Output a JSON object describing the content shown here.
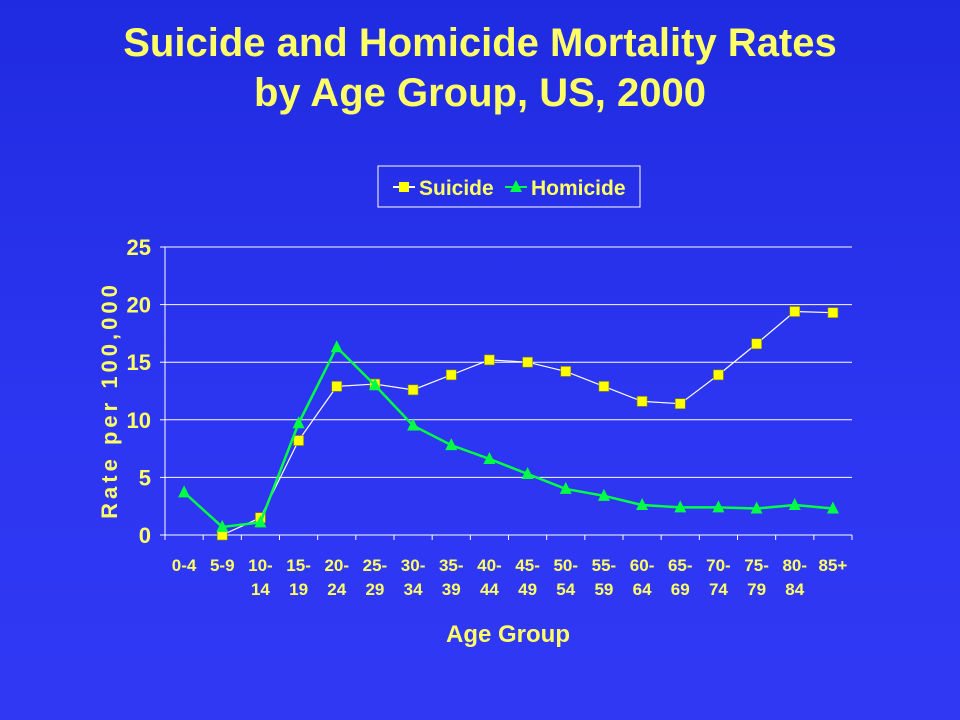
{
  "title": {
    "line1": "Suicide and Homicide Mortality Rates",
    "line2": "by Age Group, US, 2000"
  },
  "chart_data": {
    "type": "line",
    "title": "Suicide and Homicide Mortality Rates by Age Group, US, 2000",
    "xlabel": "Age Group",
    "ylabel": "Rate per 100,000",
    "ylim": [
      0,
      25
    ],
    "yticks": [
      0,
      5,
      10,
      15,
      20,
      25
    ],
    "grid": true,
    "legend_position": "top-center",
    "categories": [
      [
        "0-4"
      ],
      [
        "5-9"
      ],
      [
        "10-",
        "14"
      ],
      [
        "15-",
        "19"
      ],
      [
        "20-",
        "24"
      ],
      [
        "25-",
        "29"
      ],
      [
        "30-",
        "34"
      ],
      [
        "35-",
        "39"
      ],
      [
        "40-",
        "44"
      ],
      [
        "45-",
        "49"
      ],
      [
        "50-",
        "54"
      ],
      [
        "55-",
        "59"
      ],
      [
        "60-",
        "64"
      ],
      [
        "65-",
        "69"
      ],
      [
        "70-",
        "74"
      ],
      [
        "75-",
        "79"
      ],
      [
        "80-",
        "84"
      ],
      [
        "85+"
      ]
    ],
    "series": [
      {
        "name": "Suicide",
        "marker": "square",
        "color": "#ffff00",
        "line_color": "#ffffff",
        "values": [
          null,
          0.0,
          1.5,
          8.2,
          12.9,
          13.1,
          12.6,
          13.9,
          15.2,
          15.0,
          14.2,
          12.9,
          11.6,
          11.4,
          13.9,
          16.6,
          19.4,
          19.3
        ]
      },
      {
        "name": "Homicide",
        "marker": "triangle",
        "color": "#00ff44",
        "line_color": "#00ff44",
        "values": [
          3.7,
          0.7,
          1.1,
          9.7,
          16.3,
          13.0,
          9.5,
          7.8,
          6.6,
          5.3,
          4.0,
          3.4,
          2.6,
          2.4,
          2.4,
          2.3,
          2.6,
          2.3
        ]
      }
    ]
  }
}
